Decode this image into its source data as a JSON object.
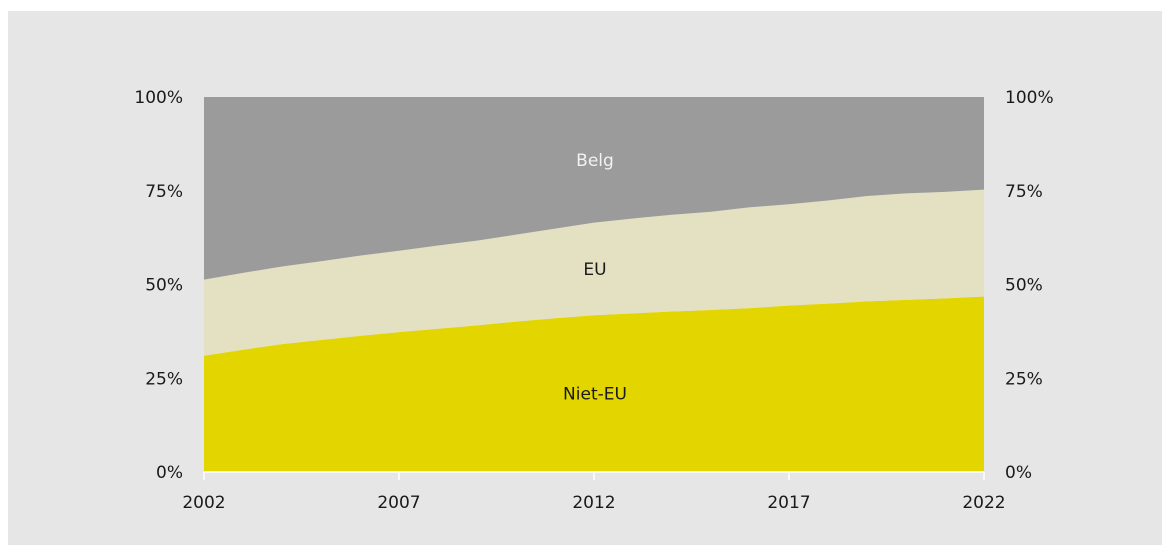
{
  "chart_data": {
    "type": "area",
    "stacked": true,
    "normalized_percent": true,
    "x": [
      2002,
      2003,
      2004,
      2005,
      2006,
      2007,
      2008,
      2009,
      2010,
      2011,
      2012,
      2013,
      2014,
      2015,
      2016,
      2017,
      2018,
      2019,
      2020,
      2021,
      2022
    ],
    "x_ticks": [
      "2002",
      "2007",
      "2012",
      "2017",
      "2022"
    ],
    "y_ticks": [
      "0%",
      "25%",
      "50%",
      "75%",
      "100%"
    ],
    "ylim": [
      0,
      100
    ],
    "xlim": [
      2002,
      2022
    ],
    "grid": false,
    "series": [
      {
        "name": "Niet-EU",
        "color": "#e3d600",
        "label_color": "#1a1a1a",
        "values": [
          31,
          32.6,
          34.1,
          35.2,
          36.3,
          37.3,
          38.2,
          39.1,
          40.1,
          41.0,
          41.8,
          42.3,
          42.8,
          43.2,
          43.7,
          44.4,
          44.9,
          45.5,
          45.9,
          46.3,
          46.8
        ]
      },
      {
        "name": "EU",
        "color": "#e4e0c2",
        "label_color": "#1a1a1a",
        "values": [
          20.3,
          20.5,
          20.7,
          21.0,
          21.4,
          21.7,
          22.2,
          22.6,
          23.2,
          23.9,
          24.7,
          25.3,
          25.8,
          26.2,
          26.9,
          27.0,
          27.5,
          28.1,
          28.4,
          28.4,
          28.5
        ]
      },
      {
        "name": "Belg",
        "color": "#9b9b9c",
        "label_color": "#f2f2f2",
        "values": [
          48.7,
          46.9,
          45.2,
          43.8,
          42.3,
          41.0,
          39.6,
          38.3,
          36.7,
          35.1,
          33.5,
          32.4,
          31.4,
          30.6,
          29.4,
          28.6,
          27.6,
          26.4,
          25.7,
          25.3,
          24.7
        ]
      }
    ]
  }
}
